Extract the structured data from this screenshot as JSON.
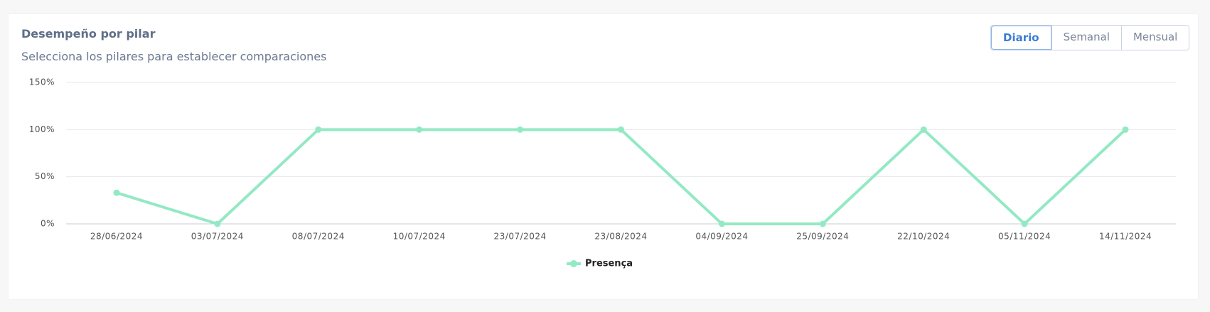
{
  "chart_data": {
    "type": "line",
    "title": "Desempeño por pilar",
    "subtitle": "Selecciona los pilares para establecer comparaciones",
    "categories": [
      "28/06/2024",
      "03/07/2024",
      "08/07/2024",
      "10/07/2024",
      "23/07/2024",
      "23/08/2024",
      "04/09/2024",
      "25/09/2024",
      "22/10/2024",
      "05/11/2024",
      "14/11/2024"
    ],
    "series": [
      {
        "name": "Presença",
        "color": "#93e9c4",
        "values": [
          33,
          0,
          100,
          100,
          100,
          100,
          0,
          0,
          100,
          0,
          100
        ]
      }
    ],
    "ylim": [
      0,
      150
    ],
    "yticks": [
      {
        "value": 0,
        "label": "0%"
      },
      {
        "value": 50,
        "label": "50%"
      },
      {
        "value": 100,
        "label": "100%"
      },
      {
        "value": 150,
        "label": "150%"
      }
    ],
    "grid": true,
    "legend": "bottom"
  },
  "controls": [
    "Diario",
    "Semanal",
    "Mensual"
  ]
}
